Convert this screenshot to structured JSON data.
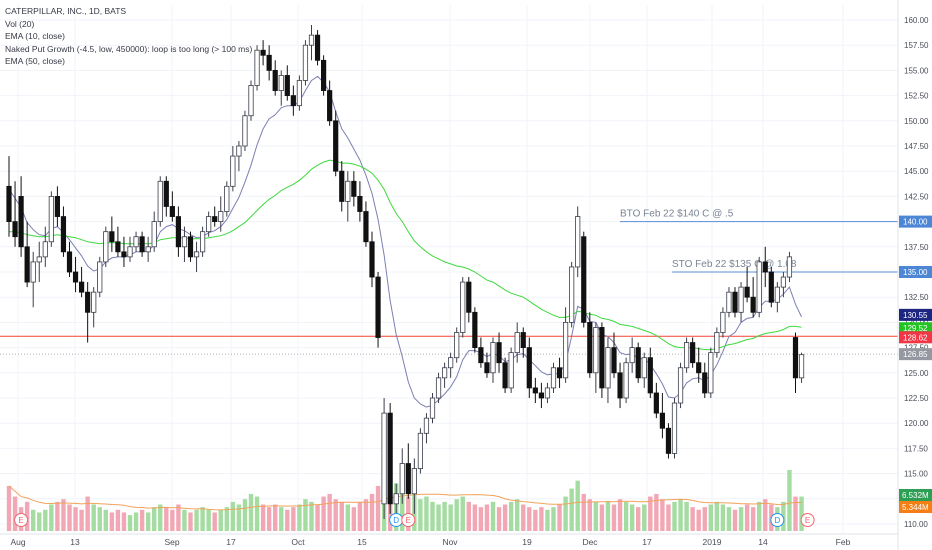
{
  "legend": {
    "symbol": "CATERPILLAR, INC., 1D, BATS",
    "volume": "Vol (20)",
    "ema10": "EMA (10, close)",
    "naked_put": "Naked Put Growth (-4.5, low, 450000): loop is too long (> 100 ms)",
    "ema50": "EMA (50, close)"
  },
  "colors": {
    "up": "#26a69a",
    "down": "#111111",
    "ema10": "#7b7fb3",
    "ema50": "#3ed93e",
    "vol_up": "#a5dca2",
    "vol_down": "#f2a8b4",
    "vol_ma": "#f2a25a",
    "hline_red": "#f44336",
    "hline_blue": "#5b8fd6",
    "badge_last": "#f23645",
    "badge_ema10": "#1c2580",
    "badge_ema50": "#22c322",
    "badge_blue": "#4e86d6",
    "badge_vol_green": "#2f9e55",
    "badge_vol_orange": "#f57f17",
    "earnings": "#f06470",
    "dividend": "#2196f3"
  },
  "chart_data": {
    "type": "candlestick",
    "title": "CATERPILLAR, INC., 1D, BATS",
    "x_tick_labels": [
      "Aug",
      "13",
      "Sep",
      "17",
      "Oct",
      "15",
      "Nov",
      "19",
      "Dec",
      "17",
      "2019",
      "14",
      "Feb"
    ],
    "y_tick_labels": [
      "110.00",
      "112.50",
      "115.00",
      "117.50",
      "120.00",
      "122.50",
      "125.00",
      "127.50",
      "130.00",
      "132.50",
      "135.00",
      "137.50",
      "140.00",
      "142.50",
      "145.00",
      "147.50",
      "150.00",
      "152.50",
      "155.00",
      "157.50",
      "160.00"
    ],
    "ylim": [
      109.5,
      161.5
    ],
    "ohlc": [
      [
        143.5,
        146.5,
        138.5,
        140.0
      ],
      [
        140.0,
        144.0,
        137.5,
        138.5
      ],
      [
        142.5,
        144.5,
        136.5,
        137.5
      ],
      [
        137.5,
        140.0,
        133.5,
        134.0
      ],
      [
        134.0,
        137.0,
        131.5,
        136.0
      ],
      [
        136.0,
        138.0,
        134.0,
        136.5
      ],
      [
        136.5,
        139.5,
        135.5,
        138.0
      ],
      [
        138.0,
        143.0,
        137.5,
        142.5
      ],
      [
        142.5,
        143.5,
        139.5,
        140.5
      ],
      [
        140.5,
        141.5,
        136.5,
        137.0
      ],
      [
        137.0,
        138.0,
        134.5,
        135.0
      ],
      [
        135.0,
        136.5,
        133.0,
        134.0
      ],
      [
        134.0,
        135.5,
        132.5,
        133.0
      ],
      [
        133.0,
        134.0,
        128.0,
        131.0
      ],
      [
        131.0,
        133.5,
        129.5,
        133.0
      ],
      [
        133.0,
        136.5,
        132.5,
        136.0
      ],
      [
        136.0,
        139.5,
        135.5,
        139.0
      ],
      [
        139.0,
        140.5,
        137.0,
        138.0
      ],
      [
        138.0,
        139.5,
        136.5,
        137.0
      ],
      [
        137.0,
        138.5,
        135.5,
        136.5
      ],
      [
        136.5,
        138.5,
        136.0,
        137.5
      ],
      [
        137.5,
        139.0,
        137.0,
        138.5
      ],
      [
        138.5,
        139.0,
        136.5,
        137.0
      ],
      [
        137.0,
        138.5,
        136.0,
        137.5
      ],
      [
        137.5,
        141.0,
        137.0,
        140.0
      ],
      [
        140.0,
        144.5,
        139.5,
        144.0
      ],
      [
        144.0,
        144.5,
        140.5,
        141.5
      ],
      [
        141.5,
        143.0,
        140.0,
        140.5
      ],
      [
        140.5,
        141.5,
        136.5,
        137.5
      ],
      [
        137.5,
        139.5,
        136.0,
        138.5
      ],
      [
        138.5,
        139.0,
        136.0,
        136.5
      ],
      [
        136.5,
        138.0,
        135.0,
        137.0
      ],
      [
        137.0,
        139.5,
        136.5,
        139.0
      ],
      [
        139.0,
        141.0,
        138.5,
        140.5
      ],
      [
        140.5,
        141.5,
        139.5,
        140.0
      ],
      [
        140.0,
        142.5,
        139.0,
        141.0
      ],
      [
        141.0,
        144.0,
        140.5,
        143.5
      ],
      [
        143.5,
        147.5,
        143.0,
        146.5
      ],
      [
        146.5,
        148.0,
        145.0,
        147.5
      ],
      [
        147.5,
        151.0,
        147.0,
        150.5
      ],
      [
        150.5,
        154.0,
        150.0,
        153.5
      ],
      [
        153.5,
        157.5,
        153.0,
        157.0
      ],
      [
        157.0,
        158.0,
        155.5,
        156.5
      ],
      [
        156.5,
        157.5,
        154.0,
        155.0
      ],
      [
        155.0,
        156.0,
        152.5,
        153.0
      ],
      [
        153.0,
        155.0,
        151.5,
        154.5
      ],
      [
        154.5,
        155.5,
        152.0,
        152.5
      ],
      [
        152.5,
        153.5,
        150.5,
        151.5
      ],
      [
        151.5,
        154.5,
        151.0,
        154.0
      ],
      [
        154.0,
        158.0,
        153.5,
        157.5
      ],
      [
        157.5,
        159.5,
        156.0,
        158.5
      ],
      [
        158.5,
        159.0,
        155.5,
        156.0
      ],
      [
        156.0,
        156.5,
        152.5,
        153.0
      ],
      [
        153.0,
        154.0,
        149.5,
        150.0
      ],
      [
        150.0,
        151.0,
        144.5,
        145.0
      ],
      [
        145.0,
        146.0,
        141.0,
        142.0
      ],
      [
        142.0,
        145.0,
        140.0,
        144.0
      ],
      [
        144.0,
        145.0,
        141.5,
        142.5
      ],
      [
        142.5,
        144.0,
        140.0,
        141.0
      ],
      [
        141.0,
        142.0,
        137.5,
        138.0
      ],
      [
        138.0,
        139.0,
        133.5,
        134.5
      ],
      [
        134.5,
        135.0,
        127.5,
        128.5
      ],
      [
        112.0,
        122.5,
        110.5,
        121.0
      ],
      [
        121.0,
        122.0,
        111.0,
        112.0
      ],
      [
        112.0,
        114.0,
        110.5,
        113.0
      ],
      [
        113.0,
        117.5,
        112.0,
        116.0
      ],
      [
        116.0,
        118.0,
        112.5,
        113.0
      ],
      [
        113.0,
        116.5,
        111.0,
        115.5
      ],
      [
        115.5,
        119.5,
        115.0,
        119.0
      ],
      [
        119.0,
        121.0,
        118.0,
        120.5
      ],
      [
        120.5,
        123.0,
        120.0,
        122.5
      ],
      [
        122.5,
        125.0,
        122.0,
        124.5
      ],
      [
        124.5,
        126.0,
        123.5,
        125.5
      ],
      [
        125.5,
        127.0,
        124.5,
        126.5
      ],
      [
        126.5,
        129.5,
        126.0,
        129.0
      ],
      [
        129.0,
        134.5,
        128.5,
        134.0
      ],
      [
        134.0,
        134.5,
        130.0,
        131.0
      ],
      [
        131.0,
        131.5,
        127.0,
        127.5
      ],
      [
        127.5,
        128.5,
        125.5,
        126.0
      ],
      [
        126.0,
        127.0,
        124.5,
        125.0
      ],
      [
        125.0,
        128.5,
        124.0,
        128.0
      ],
      [
        128.0,
        129.0,
        125.0,
        126.0
      ],
      [
        126.0,
        126.5,
        123.0,
        123.5
      ],
      [
        123.5,
        127.5,
        123.0,
        127.0
      ],
      [
        127.0,
        130.0,
        126.0,
        129.0
      ],
      [
        129.0,
        129.5,
        126.5,
        127.5
      ],
      [
        127.5,
        128.5,
        122.5,
        123.5
      ],
      [
        123.5,
        124.5,
        122.0,
        123.0
      ],
      [
        123.0,
        124.0,
        121.5,
        122.5
      ],
      [
        122.5,
        124.0,
        122.0,
        123.5
      ],
      [
        123.5,
        126.0,
        123.0,
        125.5
      ],
      [
        125.5,
        126.5,
        123.5,
        124.5
      ],
      [
        124.5,
        131.5,
        124.0,
        130.0
      ],
      [
        130.0,
        136.0,
        129.5,
        135.5
      ],
      [
        135.5,
        141.5,
        134.5,
        140.5
      ],
      [
        138.5,
        139.0,
        129.5,
        130.0
      ],
      [
        130.0,
        131.0,
        124.5,
        125.0
      ],
      [
        125.0,
        130.0,
        123.0,
        129.5
      ],
      [
        129.5,
        130.0,
        122.5,
        123.5
      ],
      [
        123.5,
        128.5,
        122.0,
        127.5
      ],
      [
        127.5,
        129.0,
        124.5,
        125.0
      ],
      [
        125.0,
        126.0,
        121.5,
        122.5
      ],
      [
        122.5,
        126.5,
        122.0,
        126.0
      ],
      [
        126.0,
        128.5,
        125.0,
        127.5
      ],
      [
        127.5,
        128.0,
        124.0,
        124.5
      ],
      [
        124.5,
        127.0,
        123.5,
        126.5
      ],
      [
        126.5,
        127.5,
        122.5,
        123.0
      ],
      [
        123.0,
        124.0,
        120.5,
        121.0
      ],
      [
        121.0,
        123.0,
        118.5,
        119.5
      ],
      [
        119.5,
        120.0,
        116.5,
        117.0
      ],
      [
        117.0,
        122.5,
        116.5,
        122.0
      ],
      [
        122.0,
        126.0,
        121.5,
        125.5
      ],
      [
        125.5,
        128.5,
        125.0,
        128.0
      ],
      [
        128.0,
        128.5,
        125.5,
        126.0
      ],
      [
        126.0,
        127.5,
        124.0,
        125.0
      ],
      [
        125.0,
        126.0,
        122.5,
        123.0
      ],
      [
        123.0,
        127.5,
        122.5,
        127.0
      ],
      [
        127.0,
        129.5,
        126.5,
        129.0
      ],
      [
        129.0,
        131.5,
        128.5,
        131.0
      ],
      [
        131.0,
        133.5,
        130.5,
        133.0
      ],
      [
        133.0,
        133.5,
        130.5,
        131.0
      ],
      [
        131.0,
        134.0,
        130.0,
        133.5
      ],
      [
        133.5,
        135.5,
        132.0,
        132.5
      ],
      [
        132.5,
        134.5,
        130.5,
        131.0
      ],
      [
        131.0,
        136.5,
        130.5,
        136.0
      ],
      [
        136.0,
        137.5,
        133.5,
        135.0
      ],
      [
        135.0,
        135.5,
        131.5,
        132.0
      ],
      [
        132.0,
        134.0,
        131.0,
        133.5
      ],
      [
        133.5,
        135.0,
        132.5,
        134.5
      ],
      [
        134.5,
        137.0,
        134.0,
        136.5
      ],
      [
        128.5,
        129.0,
        123.0,
        124.5
      ],
      [
        124.5,
        127.0,
        124.0,
        126.8
      ]
    ],
    "volume_millions": [
      8.5,
      6.5,
      4.5,
      5.5,
      4.0,
      3.5,
      4.0,
      5.0,
      5.5,
      6.0,
      5.0,
      4.5,
      4.0,
      6.5,
      5.0,
      4.5,
      4.0,
      3.5,
      4.0,
      3.5,
      3.0,
      3.5,
      4.0,
      3.5,
      4.5,
      5.0,
      4.5,
      4.0,
      5.0,
      4.0,
      3.5,
      4.0,
      4.5,
      4.0,
      3.5,
      4.0,
      4.5,
      5.5,
      5.0,
      6.0,
      7.0,
      6.5,
      5.0,
      4.5,
      5.0,
      4.5,
      4.0,
      4.5,
      5.0,
      6.0,
      5.5,
      5.0,
      6.5,
      7.0,
      6.0,
      5.5,
      5.0,
      4.5,
      5.5,
      6.0,
      7.0,
      8.5,
      14.0,
      10.0,
      9.0,
      7.5,
      6.5,
      7.0,
      6.0,
      6.5,
      5.5,
      5.0,
      5.5,
      5.0,
      6.0,
      6.5,
      5.5,
      5.0,
      4.5,
      5.0,
      5.5,
      4.5,
      5.0,
      5.5,
      6.0,
      5.0,
      4.5,
      4.0,
      4.5,
      4.0,
      4.5,
      5.0,
      6.5,
      8.0,
      9.5,
      7.0,
      6.0,
      5.5,
      5.0,
      5.5,
      5.0,
      6.0,
      5.5,
      5.0,
      4.5,
      5.0,
      6.5,
      7.0,
      6.0,
      5.0,
      5.5,
      6.0,
      5.5,
      4.5,
      4.0,
      4.5,
      5.0,
      5.5,
      5.0,
      4.5,
      4.0,
      4.5,
      5.0,
      4.5,
      5.5,
      6.0,
      5.0,
      4.5,
      5.5,
      11.5,
      6.5,
      6.5
    ],
    "ema10": [
      143.2,
      142.3,
      141.4,
      139.9,
      139.2,
      138.7,
      138.6,
      139.3,
      139.5,
      138.9,
      138.2,
      137.4,
      136.6,
      135.6,
      135.1,
      135.3,
      136.0,
      136.4,
      136.5,
      136.5,
      136.7,
      137.0,
      137.0,
      137.1,
      137.7,
      139.0,
      139.5,
      139.7,
      139.3,
      139.1,
      138.7,
      138.4,
      138.5,
      138.9,
      139.1,
      139.5,
      140.2,
      141.3,
      142.4,
      143.9,
      145.6,
      147.6,
      149.2,
      150.2,
      150.6,
      151.3,
      151.5,
      151.5,
      151.9,
      153.0,
      154.0,
      154.4,
      153.8,
      152.9,
      150.9,
      149.2,
      148.3,
      147.2,
      146.1,
      144.6,
      142.8,
      140.2,
      136.7,
      132.2,
      128.8,
      126.6,
      124.1,
      122.5,
      121.9,
      121.6,
      121.8,
      122.3,
      122.9,
      123.6,
      124.6,
      126.3,
      127.2,
      127.2,
      127.0,
      126.6,
      126.9,
      126.7,
      126.1,
      126.3,
      126.8,
      126.9,
      126.3,
      125.7,
      125.1,
      124.8,
      124.9,
      124.9,
      126.0,
      128.6,
      131.6,
      131.3,
      130.1,
      130.0,
      128.8,
      128.6,
      128.0,
      127.0,
      126.8,
      126.9,
      126.4,
      126.4,
      125.8,
      124.9,
      123.9,
      122.6,
      122.5,
      123.0,
      124.0,
      124.4,
      124.5,
      124.2,
      124.8,
      125.8,
      127.1,
      128.6,
      129.0,
      130.0,
      130.4,
      130.5,
      131.5,
      132.1,
      132.1,
      132.3,
      132.8,
      133.5,
      131.8,
      130.55
    ],
    "ema50": [
      139.0,
      139.0,
      138.9,
      138.7,
      138.6,
      138.5,
      138.5,
      138.6,
      138.7,
      138.6,
      138.5,
      138.4,
      138.2,
      138.0,
      137.9,
      137.8,
      137.9,
      137.9,
      137.9,
      137.8,
      137.8,
      137.8,
      137.8,
      137.8,
      137.9,
      138.2,
      138.3,
      138.4,
      138.4,
      138.4,
      138.3,
      138.3,
      138.3,
      138.4,
      138.5,
      138.6,
      138.8,
      139.1,
      139.5,
      139.9,
      140.5,
      141.1,
      141.7,
      142.2,
      142.6,
      143.1,
      143.4,
      143.7,
      144.1,
      144.6,
      145.2,
      145.6,
      145.9,
      146.1,
      146.0,
      145.8,
      145.8,
      145.7,
      145.5,
      145.2,
      144.8,
      144.1,
      143.2,
      141.9,
      140.8,
      140.0,
      139.0,
      138.1,
      137.5,
      137.0,
      136.6,
      136.3,
      136.0,
      135.8,
      135.6,
      135.5,
      135.3,
      135.0,
      134.6,
      134.2,
      134.0,
      133.6,
      133.2,
      132.9,
      132.7,
      132.5,
      132.1,
      131.7,
      131.3,
      131.0,
      130.7,
      130.5,
      130.5,
      130.7,
      131.1,
      131.0,
      130.8,
      130.7,
      130.4,
      130.3,
      130.1,
      129.8,
      129.7,
      129.6,
      129.4,
      129.2,
      129.0,
      128.7,
      128.3,
      127.9,
      127.6,
      127.5,
      127.5,
      127.5,
      127.4,
      127.3,
      127.3,
      127.4,
      127.6,
      127.8,
      127.9,
      128.1,
      128.3,
      128.4,
      128.7,
      128.9,
      129.0,
      129.1,
      129.3,
      129.6,
      129.6,
      129.52
    ],
    "horizontal_levels": [
      {
        "value": 140.0,
        "label": "140.00",
        "kind": "blue",
        "note": "BTO Feb 22 $140 C @ .5"
      },
      {
        "value": 135.0,
        "label": "135.00",
        "kind": "blue",
        "note": "STO Feb 22 $135 C @ 1.08"
      },
      {
        "value": 128.62,
        "label": "128.62",
        "kind": "red",
        "note": ""
      }
    ],
    "price_badges": [
      {
        "value": 130.55,
        "label": "130.55",
        "kind": "ema10"
      },
      {
        "value": 129.52,
        "label": "129.52",
        "kind": "ema50"
      },
      {
        "value": 128.62,
        "label": "128.62",
        "kind": "last"
      },
      {
        "value": 126.85,
        "label": "126.85",
        "kind": "gray"
      }
    ],
    "volume_badges": [
      {
        "label": "6.532M",
        "kind": "vol_green"
      },
      {
        "label": "5.344M",
        "kind": "vol_orange"
      }
    ],
    "events": [
      {
        "bar": 2,
        "letter": "E",
        "kind": "earnings"
      },
      {
        "bar": 64,
        "letter": "D",
        "kind": "dividend"
      },
      {
        "bar": 66,
        "letter": "E",
        "kind": "earnings"
      },
      {
        "bar": 127,
        "letter": "D",
        "kind": "dividend"
      },
      {
        "bar": 132,
        "letter": "E",
        "kind": "earnings"
      }
    ]
  }
}
